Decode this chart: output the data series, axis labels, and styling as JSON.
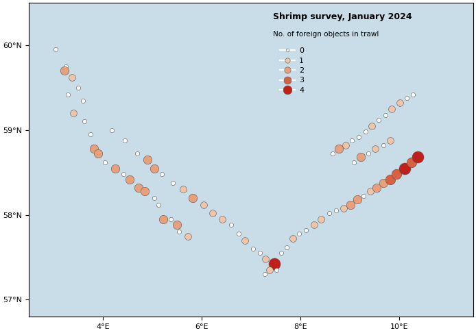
{
  "title": "Shrimp survey, January 2024",
  "subtitle": "No. of foreign objects in trawl",
  "lon_min": 2.5,
  "lon_max": 11.5,
  "lat_min": 56.8,
  "lat_max": 60.5,
  "xticks": [
    4,
    6,
    8,
    10
  ],
  "yticks": [
    57,
    58,
    59,
    60
  ],
  "background_sea": "#c8dde8",
  "background_land": "#e8eff3",
  "survey_area_color": "#8faac0",
  "survey_area_alpha": 0.35,
  "legend_sizes": [
    0,
    1,
    2,
    3,
    4
  ],
  "legend_labels": [
    "0",
    "1",
    "2",
    "3",
    "4"
  ],
  "color_0": "#ffffff",
  "color_1": "#f0c4a8",
  "color_2": "#e8a07a",
  "color_3": "#d96040",
  "color_4": "#c0201a",
  "edge_color": "#555555",
  "size_0": 20,
  "size_1": 50,
  "size_2": 80,
  "size_3": 110,
  "size_4": 150,
  "points": [
    {
      "lon": 3.05,
      "lat": 59.95,
      "val": 0
    },
    {
      "lon": 3.25,
      "lat": 59.75,
      "val": 0
    },
    {
      "lon": 3.22,
      "lat": 59.7,
      "val": 2
    },
    {
      "lon": 3.38,
      "lat": 59.62,
      "val": 1
    },
    {
      "lon": 3.5,
      "lat": 59.5,
      "val": 0
    },
    {
      "lon": 3.3,
      "lat": 59.42,
      "val": 0
    },
    {
      "lon": 3.6,
      "lat": 59.35,
      "val": 0
    },
    {
      "lon": 3.4,
      "lat": 59.2,
      "val": 1
    },
    {
      "lon": 3.62,
      "lat": 59.1,
      "val": 0
    },
    {
      "lon": 3.75,
      "lat": 58.95,
      "val": 0
    },
    {
      "lon": 3.82,
      "lat": 58.78,
      "val": 2
    },
    {
      "lon": 3.9,
      "lat": 58.72,
      "val": 2
    },
    {
      "lon": 4.05,
      "lat": 58.62,
      "val": 0
    },
    {
      "lon": 4.25,
      "lat": 58.55,
      "val": 2
    },
    {
      "lon": 4.42,
      "lat": 58.48,
      "val": 0
    },
    {
      "lon": 4.55,
      "lat": 58.42,
      "val": 2
    },
    {
      "lon": 4.72,
      "lat": 58.32,
      "val": 2
    },
    {
      "lon": 4.85,
      "lat": 58.28,
      "val": 2
    },
    {
      "lon": 5.05,
      "lat": 58.2,
      "val": 0
    },
    {
      "lon": 5.12,
      "lat": 58.12,
      "val": 0
    },
    {
      "lon": 5.22,
      "lat": 57.95,
      "val": 2
    },
    {
      "lon": 5.38,
      "lat": 57.95,
      "val": 0
    },
    {
      "lon": 5.5,
      "lat": 57.88,
      "val": 2
    },
    {
      "lon": 5.55,
      "lat": 57.8,
      "val": 0
    },
    {
      "lon": 5.72,
      "lat": 57.75,
      "val": 1
    },
    {
      "lon": 4.18,
      "lat": 59.0,
      "val": 0
    },
    {
      "lon": 4.45,
      "lat": 58.88,
      "val": 0
    },
    {
      "lon": 4.7,
      "lat": 58.72,
      "val": 0
    },
    {
      "lon": 4.9,
      "lat": 58.65,
      "val": 2
    },
    {
      "lon": 5.05,
      "lat": 58.55,
      "val": 2
    },
    {
      "lon": 5.2,
      "lat": 58.48,
      "val": 0
    },
    {
      "lon": 5.42,
      "lat": 58.38,
      "val": 0
    },
    {
      "lon": 5.62,
      "lat": 58.3,
      "val": 1
    },
    {
      "lon": 5.82,
      "lat": 58.2,
      "val": 2
    },
    {
      "lon": 6.05,
      "lat": 58.12,
      "val": 1
    },
    {
      "lon": 6.22,
      "lat": 58.02,
      "val": 1
    },
    {
      "lon": 6.42,
      "lat": 57.95,
      "val": 1
    },
    {
      "lon": 6.6,
      "lat": 57.88,
      "val": 0
    },
    {
      "lon": 6.75,
      "lat": 57.78,
      "val": 0
    },
    {
      "lon": 6.88,
      "lat": 57.7,
      "val": 1
    },
    {
      "lon": 7.05,
      "lat": 57.6,
      "val": 0
    },
    {
      "lon": 7.18,
      "lat": 57.55,
      "val": 0
    },
    {
      "lon": 7.3,
      "lat": 57.48,
      "val": 1
    },
    {
      "lon": 7.48,
      "lat": 57.42,
      "val": 4
    },
    {
      "lon": 7.38,
      "lat": 57.35,
      "val": 1
    },
    {
      "lon": 7.52,
      "lat": 57.35,
      "val": 0
    },
    {
      "lon": 7.28,
      "lat": 57.3,
      "val": 0
    },
    {
      "lon": 7.62,
      "lat": 57.55,
      "val": 0
    },
    {
      "lon": 7.72,
      "lat": 57.62,
      "val": 0
    },
    {
      "lon": 7.85,
      "lat": 57.72,
      "val": 1
    },
    {
      "lon": 7.98,
      "lat": 57.78,
      "val": 0
    },
    {
      "lon": 8.12,
      "lat": 57.82,
      "val": 0
    },
    {
      "lon": 8.28,
      "lat": 57.88,
      "val": 1
    },
    {
      "lon": 8.42,
      "lat": 57.95,
      "val": 1
    },
    {
      "lon": 8.58,
      "lat": 58.02,
      "val": 0
    },
    {
      "lon": 8.72,
      "lat": 58.05,
      "val": 0
    },
    {
      "lon": 8.88,
      "lat": 58.08,
      "val": 1
    },
    {
      "lon": 9.02,
      "lat": 58.12,
      "val": 2
    },
    {
      "lon": 9.15,
      "lat": 58.18,
      "val": 2
    },
    {
      "lon": 9.28,
      "lat": 58.22,
      "val": 0
    },
    {
      "lon": 9.42,
      "lat": 58.28,
      "val": 1
    },
    {
      "lon": 9.55,
      "lat": 58.32,
      "val": 2
    },
    {
      "lon": 9.68,
      "lat": 58.38,
      "val": 2
    },
    {
      "lon": 9.82,
      "lat": 58.42,
      "val": 3
    },
    {
      "lon": 9.95,
      "lat": 58.48,
      "val": 3
    },
    {
      "lon": 10.12,
      "lat": 58.55,
      "val": 4
    },
    {
      "lon": 10.25,
      "lat": 58.62,
      "val": 3
    },
    {
      "lon": 10.38,
      "lat": 58.68,
      "val": 4
    },
    {
      "lon": 9.05,
      "lat": 58.88,
      "val": 0
    },
    {
      "lon": 9.18,
      "lat": 58.92,
      "val": 0
    },
    {
      "lon": 9.32,
      "lat": 58.98,
      "val": 0
    },
    {
      "lon": 9.45,
      "lat": 59.05,
      "val": 1
    },
    {
      "lon": 9.58,
      "lat": 59.12,
      "val": 0
    },
    {
      "lon": 9.72,
      "lat": 59.18,
      "val": 0
    },
    {
      "lon": 9.85,
      "lat": 59.25,
      "val": 1
    },
    {
      "lon": 10.02,
      "lat": 59.32,
      "val": 1
    },
    {
      "lon": 10.15,
      "lat": 59.38,
      "val": 0
    },
    {
      "lon": 10.28,
      "lat": 59.42,
      "val": 0
    },
    {
      "lon": 8.65,
      "lat": 58.72,
      "val": 0
    },
    {
      "lon": 8.78,
      "lat": 58.78,
      "val": 2
    },
    {
      "lon": 8.92,
      "lat": 58.82,
      "val": 1
    },
    {
      "lon": 9.08,
      "lat": 58.62,
      "val": 0
    },
    {
      "lon": 9.22,
      "lat": 58.68,
      "val": 2
    },
    {
      "lon": 9.38,
      "lat": 58.72,
      "val": 0
    },
    {
      "lon": 9.52,
      "lat": 58.78,
      "val": 1
    },
    {
      "lon": 9.68,
      "lat": 58.82,
      "val": 0
    },
    {
      "lon": 9.82,
      "lat": 58.88,
      "val": 1
    }
  ]
}
